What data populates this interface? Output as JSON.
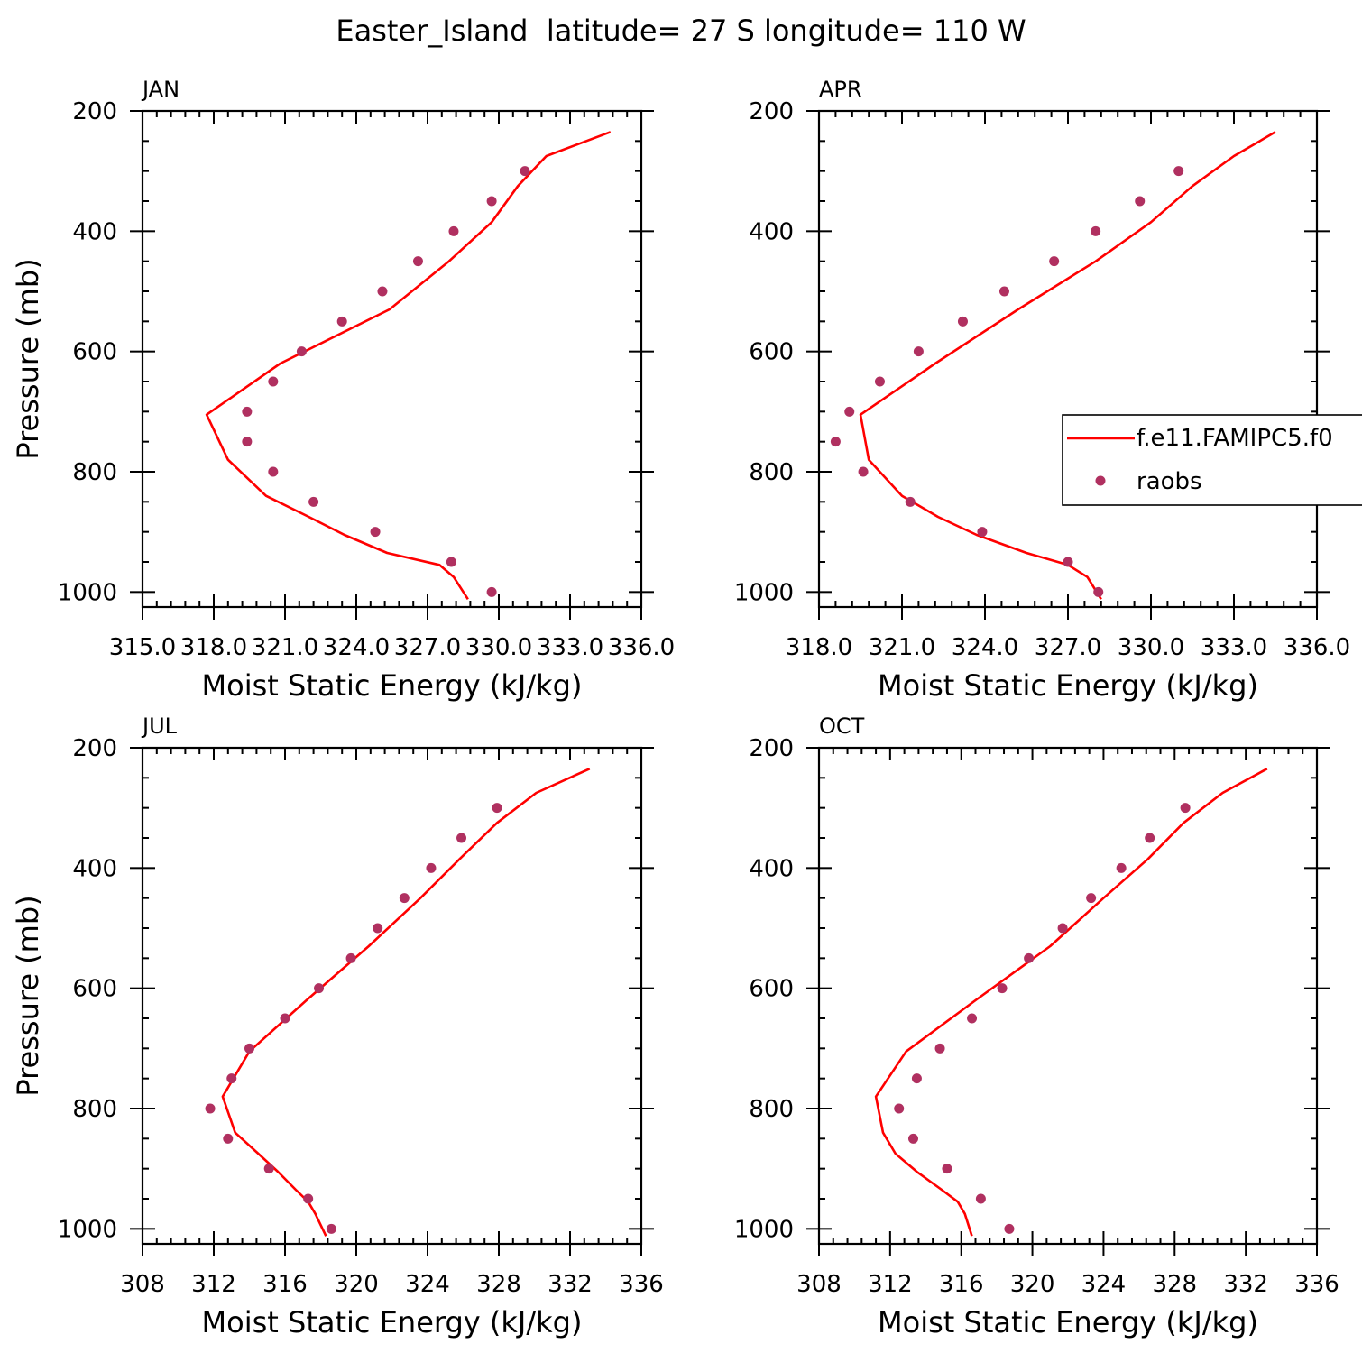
{
  "title": "Easter_Island  latitude= 27 S longitude= 110 W",
  "colors": {
    "model": "#ff0000",
    "obs": "#b03060",
    "axis": "#000000"
  },
  "legend": {
    "model_label": "f.e11.FAMIPC5.f0",
    "obs_label": "raobs"
  },
  "chart_data": [
    {
      "type": "line",
      "panel": "JAN",
      "xlabel": "Moist Static Energy (kJ/kg)",
      "ylabel": "Pressure (mb)",
      "xlim": [
        315,
        336
      ],
      "ylim": [
        1025,
        200
      ],
      "xticks": [
        315,
        318,
        321,
        324,
        327,
        330,
        333,
        336
      ],
      "xtick_labels": [
        "315.0",
        "318.0",
        "321.0",
        "324.0",
        "327.0",
        "330.0",
        "333.0",
        "336.0"
      ],
      "yticks": [
        200,
        400,
        600,
        800,
        1000
      ],
      "ytick_labels": [
        "200",
        "400",
        "600",
        "800",
        "1000"
      ],
      "model": {
        "name": "f.e11.FAMIPC5.f0",
        "pressure": [
          235,
          275,
          325,
          385,
          450,
          530,
          620,
          705,
          780,
          840,
          875,
          905,
          935,
          955,
          975,
          1012
        ],
        "mse": [
          334.7,
          332.0,
          330.8,
          329.7,
          327.9,
          325.4,
          320.8,
          317.7,
          318.6,
          320.2,
          322.0,
          323.5,
          325.3,
          327.5,
          328.1,
          328.7
        ]
      },
      "obs": {
        "name": "raobs",
        "pressure": [
          300,
          350,
          400,
          450,
          500,
          550,
          600,
          650,
          700,
          750,
          800,
          850,
          900,
          950,
          1000
        ],
        "mse": [
          331.1,
          329.7,
          328.1,
          326.6,
          325.1,
          323.4,
          321.7,
          320.5,
          319.4,
          319.4,
          320.5,
          322.2,
          324.8,
          328.0,
          329.7
        ]
      }
    },
    {
      "type": "line",
      "panel": "APR",
      "xlabel": "Moist Static Energy (kJ/kg)",
      "ylabel": "",
      "xlim": [
        318,
        336
      ],
      "ylim": [
        1025,
        200
      ],
      "xticks": [
        318,
        321,
        324,
        327,
        330,
        333,
        336
      ],
      "xtick_labels": [
        "318.0",
        "321.0",
        "324.0",
        "327.0",
        "330.0",
        "333.0",
        "336.0"
      ],
      "yticks": [
        200,
        400,
        600,
        800,
        1000
      ],
      "ytick_labels": [
        "200",
        "400",
        "600",
        "800",
        "1000"
      ],
      "model": {
        "name": "f.e11.FAMIPC5.f0",
        "pressure": [
          235,
          275,
          325,
          385,
          450,
          530,
          620,
          705,
          780,
          840,
          875,
          905,
          935,
          955,
          975,
          1012
        ],
        "mse": [
          334.5,
          333.0,
          331.5,
          330.0,
          328.0,
          325.2,
          322.2,
          319.5,
          319.8,
          321.0,
          322.3,
          323.7,
          325.5,
          327.0,
          327.7,
          328.2
        ]
      },
      "obs": {
        "name": "raobs",
        "pressure": [
          300,
          350,
          400,
          450,
          500,
          550,
          600,
          650,
          700,
          750,
          800,
          850,
          900,
          950,
          1000
        ],
        "mse": [
          331.0,
          329.6,
          328.0,
          326.5,
          324.7,
          323.2,
          321.6,
          320.2,
          319.1,
          318.6,
          319.6,
          321.3,
          323.9,
          327.0,
          328.1
        ]
      }
    },
    {
      "type": "line",
      "panel": "JUL",
      "xlabel": "Moist Static Energy (kJ/kg)",
      "ylabel": "Pressure (mb)",
      "xlim": [
        308,
        336
      ],
      "ylim": [
        1025,
        200
      ],
      "xticks": [
        308,
        312,
        316,
        320,
        324,
        328,
        332,
        336
      ],
      "xtick_labels": [
        "308",
        "312",
        "316",
        "320",
        "324",
        "328",
        "332",
        "336"
      ],
      "yticks": [
        200,
        400,
        600,
        800,
        1000
      ],
      "ytick_labels": [
        "200",
        "400",
        "600",
        "800",
        "1000"
      ],
      "model": {
        "name": "f.e11.FAMIPC5.f0",
        "pressure": [
          235,
          275,
          325,
          385,
          450,
          530,
          620,
          705,
          780,
          840,
          875,
          905,
          935,
          955,
          975,
          1012
        ],
        "mse": [
          333.1,
          330.1,
          327.9,
          325.8,
          323.6,
          320.7,
          317.2,
          314.0,
          312.5,
          313.2,
          314.5,
          315.6,
          316.6,
          317.3,
          317.7,
          318.3
        ]
      },
      "obs": {
        "name": "raobs",
        "pressure": [
          300,
          350,
          400,
          450,
          500,
          550,
          600,
          650,
          700,
          750,
          800,
          850,
          900,
          950,
          1000
        ],
        "mse": [
          327.9,
          325.9,
          324.2,
          322.7,
          321.2,
          319.7,
          317.9,
          316.0,
          314.0,
          313.0,
          311.8,
          312.8,
          315.1,
          317.3,
          318.6
        ]
      }
    },
    {
      "type": "line",
      "panel": "OCT",
      "xlabel": "Moist Static Energy (kJ/kg)",
      "ylabel": "",
      "xlim": [
        308,
        336
      ],
      "ylim": [
        1025,
        200
      ],
      "xticks": [
        308,
        312,
        316,
        320,
        324,
        328,
        332,
        336
      ],
      "xtick_labels": [
        "308",
        "312",
        "316",
        "320",
        "324",
        "328",
        "332",
        "336"
      ],
      "yticks": [
        200,
        400,
        600,
        800,
        1000
      ],
      "ytick_labels": [
        "200",
        "400",
        "600",
        "800",
        "1000"
      ],
      "model": {
        "name": "f.e11.FAMIPC5.f0",
        "pressure": [
          235,
          275,
          325,
          385,
          450,
          530,
          620,
          705,
          780,
          840,
          875,
          905,
          935,
          955,
          975,
          1012
        ],
        "mse": [
          333.2,
          330.7,
          328.5,
          326.5,
          324.0,
          321.0,
          316.8,
          312.9,
          311.2,
          311.6,
          312.3,
          313.5,
          314.9,
          315.8,
          316.2,
          316.6
        ]
      },
      "obs": {
        "name": "raobs",
        "pressure": [
          300,
          350,
          400,
          450,
          500,
          550,
          600,
          650,
          700,
          750,
          800,
          850,
          900,
          950,
          1000
        ],
        "mse": [
          328.6,
          326.6,
          325.0,
          323.3,
          321.7,
          319.8,
          318.3,
          316.6,
          314.8,
          313.5,
          312.5,
          313.3,
          315.2,
          317.1,
          318.7
        ]
      }
    }
  ]
}
